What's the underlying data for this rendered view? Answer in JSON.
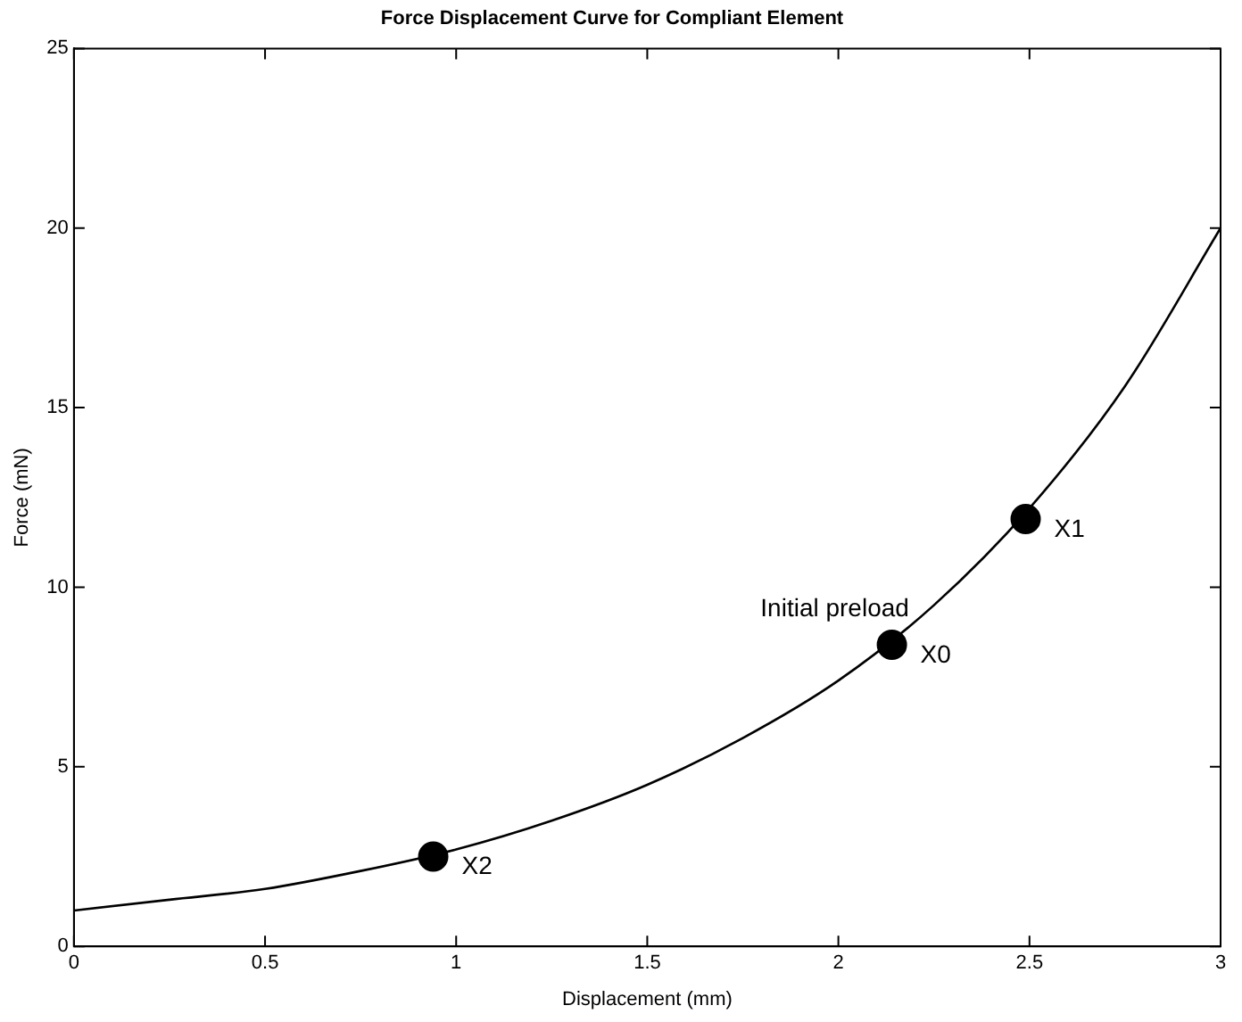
{
  "chart_data": {
    "type": "line",
    "title": "Force Displacement Curve for Compliant Element",
    "xlabel": "Displacement (mm)",
    "ylabel": "Force (mN)",
    "series": [
      {
        "color": "#000000",
        "marker": "none",
        "x": [
          0,
          0.25,
          0.5,
          0.75,
          1,
          1.25,
          1.5,
          1.75,
          2,
          2.25,
          2.5,
          2.75,
          3
        ],
        "values": [
          1.0,
          1.3,
          1.6,
          2.1,
          2.7,
          3.5,
          4.5,
          5.8,
          7.4,
          9.5,
          12.2,
          15.6,
          20.0
        ]
      },
      {
        "type": "scatter",
        "color": "#000000",
        "marker": "circle",
        "x": [
          0.94,
          2.14,
          2.49
        ],
        "values": [
          2.5,
          8.4,
          11.9
        ]
      }
    ],
    "annotations": [
      {
        "text": "X2",
        "x": 0.94,
        "y": 2.5
      },
      {
        "text": "X0",
        "x": 2.14,
        "y": 8.4
      },
      {
        "text": "Initial preload",
        "x": 2.14,
        "y": 8.4
      },
      {
        "text": "X1",
        "x": 2.49,
        "y": 11.9
      }
    ],
    "xlim": [
      0,
      3
    ],
    "xticks": [
      0,
      0.5,
      1,
      1.5,
      2,
      2.5,
      3
    ],
    "ylim": [
      0,
      25
    ],
    "yticks": [
      0,
      5,
      10,
      15,
      20,
      25
    ],
    "grid": false,
    "legend": false
  }
}
